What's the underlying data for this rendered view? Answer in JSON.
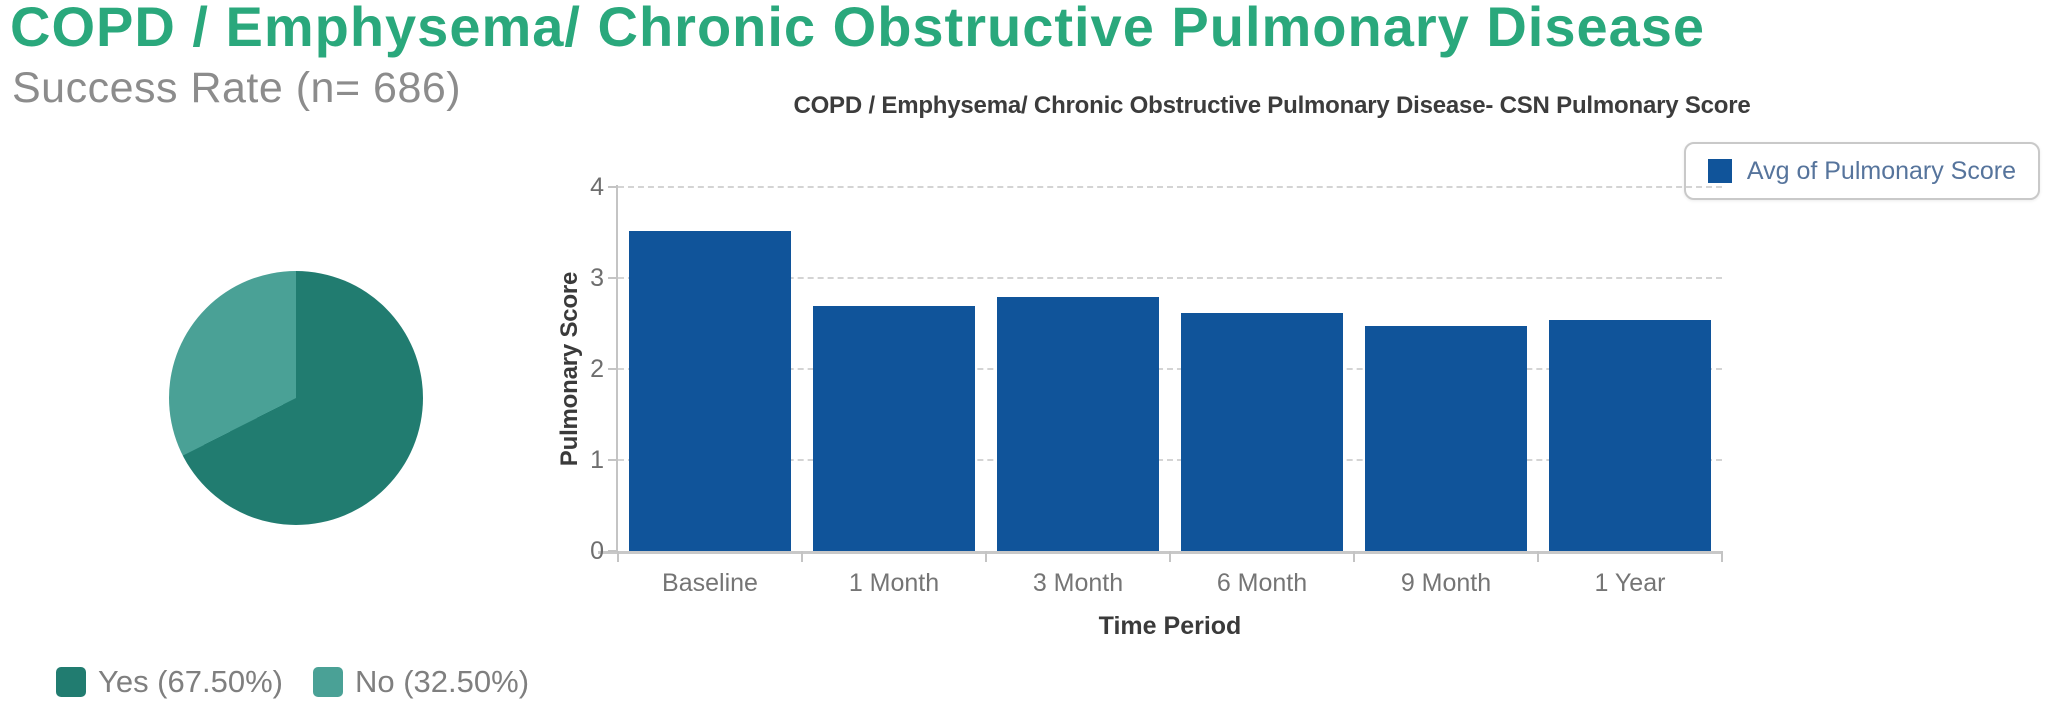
{
  "header": {
    "title": "COPD / Emphysema/ Chronic Obstructive Pulmonary Disease",
    "subtitle": "Success Rate (n= 686)"
  },
  "colors": {
    "title_green": "#2aa87c",
    "subtitle_gray": "#8c8c8c",
    "bar_blue": "#10549a",
    "pie_yes_teal": "#217c70",
    "pie_no_teal": "#4aa196",
    "legend_text_blue": "#56749c"
  },
  "pie": {
    "legend": [
      {
        "label": "Yes (67.50%)",
        "color": "#217c70"
      },
      {
        "label": "No (32.50%)",
        "color": "#4aa196"
      }
    ]
  },
  "bar_chart": {
    "title": "COPD / Emphysema/ Chronic Obstructive Pulmonary Disease- CSN Pulmonary Score",
    "legend_label": "Avg of Pulmonary Score",
    "xlabel": "Time Period",
    "ylabel": "Pulmonary Score"
  },
  "chart_data": [
    {
      "type": "pie",
      "title": "Success Rate (n= 686)",
      "labels": [
        "Yes",
        "No"
      ],
      "values": [
        67.5,
        32.5
      ],
      "colors": [
        "#217c70",
        "#4aa196"
      ],
      "legend_position": "bottom-left",
      "start_angle": "top, clockwise"
    },
    {
      "type": "bar",
      "title": "COPD / Emphysema/ Chronic Obstructive Pulmonary Disease- CSN Pulmonary Score",
      "categories": [
        "Baseline",
        "1 Month",
        "3 Month",
        "6 Month",
        "9 Month",
        "1 Year"
      ],
      "series": [
        {
          "name": "Avg of Pulmonary Score",
          "values": [
            3.52,
            2.69,
            2.79,
            2.62,
            2.47,
            2.54
          ]
        }
      ],
      "xlabel": "Time Period",
      "ylabel": "Pulmonary Score",
      "ylim": [
        0,
        4
      ],
      "yticks": [
        0,
        1,
        2,
        3,
        4
      ],
      "grid": "horizontal dashed",
      "legend_position": "top-right",
      "bar_color": "#10549a"
    }
  ]
}
